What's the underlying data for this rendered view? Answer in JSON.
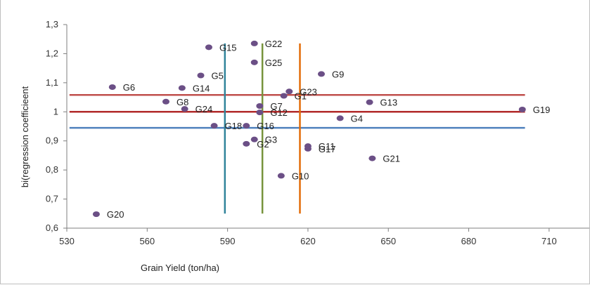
{
  "chart_data": {
    "type": "scatter",
    "xlabel": "Grain Yield  (ton/ha)",
    "ylabel": "bi(regression coefficieent",
    "xlim": [
      530,
      725
    ],
    "ylim": [
      0.6,
      1.3
    ],
    "x_ticks": [
      "530",
      "560",
      "590",
      "620",
      "650",
      "680",
      "710"
    ],
    "y_ticks": [
      "0,6",
      "0,7",
      "0,8",
      "0,9",
      "1",
      "1,1",
      "1,2",
      "1,3"
    ],
    "grid": false,
    "point_color": "#6B4F86",
    "points": [
      {
        "label": "G1",
        "x": 611,
        "y": 1.055
      },
      {
        "label": "G2",
        "x": 597,
        "y": 0.89
      },
      {
        "label": "G3",
        "x": 600,
        "y": 0.905
      },
      {
        "label": "G4",
        "x": 632,
        "y": 0.978
      },
      {
        "label": "G5",
        "x": 580,
        "y": 1.125
      },
      {
        "label": "G6",
        "x": 547,
        "y": 1.085
      },
      {
        "label": "G7",
        "x": 602,
        "y": 1.02
      },
      {
        "label": "G8",
        "x": 567,
        "y": 1.035
      },
      {
        "label": "G9",
        "x": 625,
        "y": 1.13
      },
      {
        "label": "G10",
        "x": 610,
        "y": 0.78
      },
      {
        "label": "G11",
        "x": 620,
        "y": 0.882
      },
      {
        "label": "G12",
        "x": 602,
        "y": 0.998
      },
      {
        "label": "G13",
        "x": 643,
        "y": 1.033
      },
      {
        "label": "G14",
        "x": 573,
        "y": 1.082
      },
      {
        "label": "G15",
        "x": 583,
        "y": 1.222
      },
      {
        "label": "G16",
        "x": 597,
        "y": 0.952
      },
      {
        "label": "G17",
        "x": 620,
        "y": 0.873
      },
      {
        "label": "G18",
        "x": 585,
        "y": 0.952
      },
      {
        "label": "G19",
        "x": 700,
        "y": 1.008
      },
      {
        "label": "G20",
        "x": 541,
        "y": 0.648
      },
      {
        "label": "G21",
        "x": 644,
        "y": 0.84
      },
      {
        "label": "G22",
        "x": 600,
        "y": 1.235
      },
      {
        "label": "G23",
        "x": 613,
        "y": 1.07
      },
      {
        "label": "G24",
        "x": 574,
        "y": 1.01
      },
      {
        "label": "G25",
        "x": 600,
        "y": 1.17
      }
    ],
    "reference_lines": [
      {
        "orientation": "horizontal",
        "value": 1.058,
        "color": "#C0504D"
      },
      {
        "orientation": "horizontal",
        "value": 1.0,
        "color": "#B22A2A"
      },
      {
        "orientation": "horizontal",
        "value": 0.945,
        "color": "#4F81BD"
      },
      {
        "orientation": "vertical",
        "value": 589,
        "color": "#31849B",
        "y_range": [
          0.65,
          1.235
        ]
      },
      {
        "orientation": "vertical",
        "value": 603,
        "color": "#77933C",
        "y_range": [
          0.65,
          1.235
        ]
      },
      {
        "orientation": "vertical",
        "value": 617,
        "color": "#E36C09",
        "y_range": [
          0.65,
          1.235
        ]
      }
    ]
  }
}
